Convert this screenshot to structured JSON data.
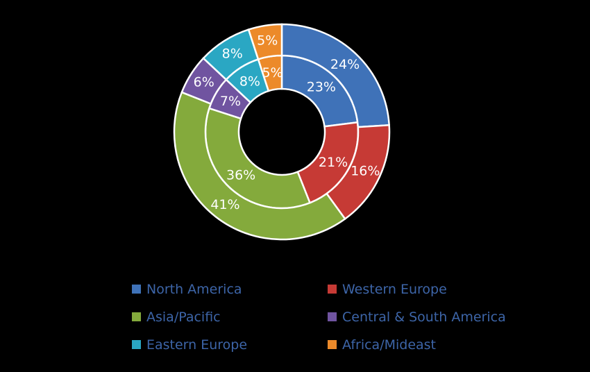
{
  "chart_data": {
    "type": "donut",
    "categories": [
      "North America",
      "Western Europe",
      "Asia/Pacific",
      "Central & South America",
      "Eastern Europe",
      "Africa/Mideast"
    ],
    "colors": [
      "#3f72b8",
      "#c63a35",
      "#84aa3c",
      "#7054a0",
      "#2aa7c3",
      "#ec8a2a"
    ],
    "series": [
      {
        "ring": "inner",
        "values": [
          23,
          21,
          36,
          7,
          8,
          5
        ],
        "labels": [
          "23%",
          "21%",
          "36%",
          "7%",
          "8%",
          "5%"
        ]
      },
      {
        "ring": "outer",
        "values": [
          24,
          16,
          41,
          6,
          8,
          5
        ],
        "labels": [
          "24%",
          "16%",
          "41%",
          "6%",
          "8%",
          "5%"
        ]
      }
    ],
    "legend": {
      "position": "bottom",
      "items": [
        {
          "label": "North America",
          "color": "#3f72b8"
        },
        {
          "label": "Western Europe",
          "color": "#c63a35"
        },
        {
          "label": "Asia/Pacific",
          "color": "#84aa3c"
        },
        {
          "label": "Central & South America",
          "color": "#7054a0"
        },
        {
          "label": "Eastern Europe",
          "color": "#2aa7c3"
        },
        {
          "label": "Africa/Mideast",
          "color": "#ec8a2a"
        }
      ]
    }
  }
}
